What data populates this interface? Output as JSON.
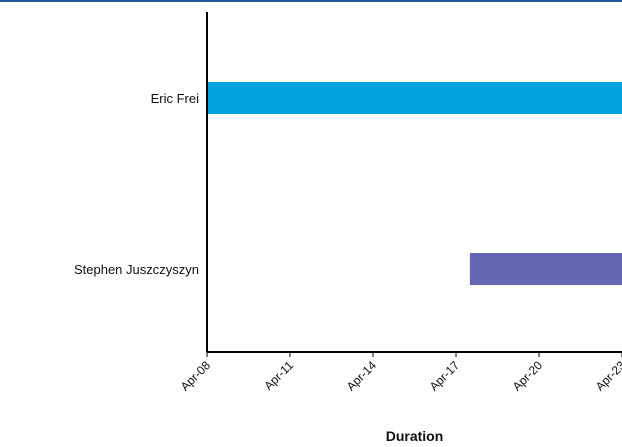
{
  "colors": {
    "top_border": "#1f5c99",
    "axis": "#000000"
  },
  "chart_data": {
    "type": "bar",
    "orientation": "horizontal",
    "chart_kind": "gantt",
    "title": "",
    "xlabel": "Duration",
    "ylabel": "",
    "x_axis_type": "date",
    "x_ticks": [
      "Apr-08",
      "Apr-11",
      "Apr-14",
      "Apr-17",
      "Apr-20",
      "Apr-23"
    ],
    "x_tick_dates": [
      "2008-04-01",
      "2011-04-01",
      "2014-04-01",
      "2017-04-01",
      "2020-04-01",
      "2023-04-01"
    ],
    "xlim": [
      "2008-04-01",
      "2023-04-01"
    ],
    "grid": false,
    "legend": "none",
    "categories": [
      "Eric Frei",
      "Stephen Juszczyszyn"
    ],
    "tasks": [
      {
        "name": "Eric Frei",
        "start": "2008-04-01",
        "end": "2023-04-01",
        "color": "#00a3e0",
        "extends_beyond_view": true
      },
      {
        "name": "Stephen Juszczyszyn",
        "start": "2017-10-01",
        "end": "2023-04-01",
        "color": "#6666b3",
        "extends_beyond_view": true
      }
    ]
  }
}
